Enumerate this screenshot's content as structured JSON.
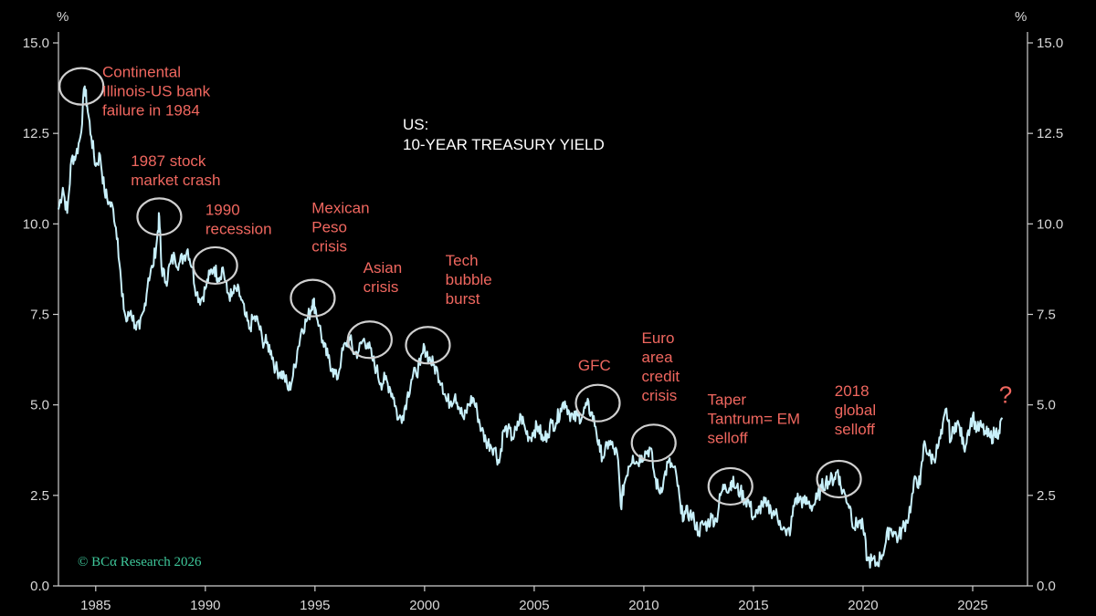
{
  "chart_data": {
    "type": "line",
    "title_lines": [
      "US:",
      "10-YEAR TREASURY YIELD"
    ],
    "unit_left": "%",
    "unit_right": "%",
    "credit": "© BCα Research 2026",
    "xlim": [
      1983.3,
      2027.5
    ],
    "ylim": [
      0,
      15.0
    ],
    "x_ticks": [
      1985,
      1990,
      1995,
      2000,
      2005,
      2010,
      2015,
      2020,
      2025
    ],
    "x_tick_labels": [
      "1985",
      "1990",
      "1995",
      "2000",
      "2005",
      "2010",
      "2015",
      "2020",
      "2025"
    ],
    "y_ticks": [
      0,
      2.5,
      5.0,
      7.5,
      10.0,
      12.5,
      15.0
    ],
    "y_tick_labels": [
      "0.0",
      "2.5",
      "5.0",
      "7.5",
      "10.0",
      "12.5",
      "15.0"
    ],
    "series": [
      {
        "color": "#c8f0fa",
        "points": [
          [
            1983.3,
            10.4
          ],
          [
            1983.5,
            11.0
          ],
          [
            1983.7,
            10.3
          ],
          [
            1983.9,
            11.8
          ],
          [
            1984.1,
            11.9
          ],
          [
            1984.3,
            12.4
          ],
          [
            1984.5,
            13.8
          ],
          [
            1984.6,
            13.3
          ],
          [
            1984.8,
            12.4
          ],
          [
            1985.0,
            11.6
          ],
          [
            1985.2,
            11.9
          ],
          [
            1985.4,
            10.9
          ],
          [
            1985.6,
            10.6
          ],
          [
            1985.8,
            10.4
          ],
          [
            1986.0,
            9.6
          ],
          [
            1986.2,
            8.0
          ],
          [
            1986.4,
            7.3
          ],
          [
            1986.6,
            7.6
          ],
          [
            1986.8,
            7.2
          ],
          [
            1987.0,
            7.1
          ],
          [
            1987.2,
            7.6
          ],
          [
            1987.4,
            8.5
          ],
          [
            1987.6,
            8.8
          ],
          [
            1987.8,
            9.6
          ],
          [
            1987.9,
            10.2
          ],
          [
            1988.0,
            8.8
          ],
          [
            1988.2,
            8.4
          ],
          [
            1988.4,
            8.9
          ],
          [
            1988.6,
            9.1
          ],
          [
            1988.8,
            8.9
          ],
          [
            1989.0,
            9.1
          ],
          [
            1989.2,
            9.3
          ],
          [
            1989.4,
            8.8
          ],
          [
            1989.6,
            8.1
          ],
          [
            1989.8,
            7.9
          ],
          [
            1990.0,
            8.2
          ],
          [
            1990.2,
            8.6
          ],
          [
            1990.4,
            8.8
          ],
          [
            1990.6,
            8.5
          ],
          [
            1990.8,
            8.8
          ],
          [
            1991.0,
            8.1
          ],
          [
            1991.2,
            8.0
          ],
          [
            1991.4,
            8.2
          ],
          [
            1991.6,
            8.0
          ],
          [
            1991.8,
            7.5
          ],
          [
            1992.0,
            7.1
          ],
          [
            1992.2,
            7.4
          ],
          [
            1992.4,
            7.3
          ],
          [
            1992.6,
            6.8
          ],
          [
            1992.8,
            6.7
          ],
          [
            1993.0,
            6.5
          ],
          [
            1993.2,
            6.0
          ],
          [
            1993.4,
            5.9
          ],
          [
            1993.6,
            5.8
          ],
          [
            1993.8,
            5.4
          ],
          [
            1994.0,
            5.8
          ],
          [
            1994.2,
            6.5
          ],
          [
            1994.4,
            7.1
          ],
          [
            1994.6,
            7.3
          ],
          [
            1994.8,
            7.6
          ],
          [
            1994.9,
            7.9
          ],
          [
            1995.0,
            7.7
          ],
          [
            1995.2,
            7.2
          ],
          [
            1995.4,
            6.6
          ],
          [
            1995.6,
            6.3
          ],
          [
            1995.8,
            6.0
          ],
          [
            1996.0,
            5.7
          ],
          [
            1996.2,
            6.3
          ],
          [
            1996.4,
            6.7
          ],
          [
            1996.6,
            6.8
          ],
          [
            1996.8,
            6.4
          ],
          [
            1997.0,
            6.5
          ],
          [
            1997.2,
            6.8
          ],
          [
            1997.4,
            6.7
          ],
          [
            1997.6,
            6.3
          ],
          [
            1997.8,
            6.0
          ],
          [
            1998.0,
            5.6
          ],
          [
            1998.2,
            5.7
          ],
          [
            1998.4,
            5.5
          ],
          [
            1998.6,
            5.2
          ],
          [
            1998.8,
            4.6
          ],
          [
            1999.0,
            4.7
          ],
          [
            1999.2,
            5.2
          ],
          [
            1999.4,
            5.7
          ],
          [
            1999.6,
            5.9
          ],
          [
            1999.8,
            6.1
          ],
          [
            2000.0,
            6.6
          ],
          [
            2000.2,
            6.3
          ],
          [
            2000.4,
            6.1
          ],
          [
            2000.6,
            5.9
          ],
          [
            2000.8,
            5.6
          ],
          [
            2001.0,
            5.1
          ],
          [
            2001.2,
            5.1
          ],
          [
            2001.4,
            5.3
          ],
          [
            2001.6,
            4.9
          ],
          [
            2001.8,
            4.6
          ],
          [
            2002.0,
            5.0
          ],
          [
            2002.2,
            5.2
          ],
          [
            2002.4,
            4.8
          ],
          [
            2002.6,
            4.3
          ],
          [
            2002.8,
            4.0
          ],
          [
            2003.0,
            3.9
          ],
          [
            2003.2,
            3.8
          ],
          [
            2003.4,
            3.4
          ],
          [
            2003.6,
            4.3
          ],
          [
            2003.8,
            4.3
          ],
          [
            2004.0,
            4.1
          ],
          [
            2004.2,
            4.3
          ],
          [
            2004.4,
            4.7
          ],
          [
            2004.6,
            4.3
          ],
          [
            2004.8,
            4.1
          ],
          [
            2005.0,
            4.3
          ],
          [
            2005.2,
            4.4
          ],
          [
            2005.4,
            4.0
          ],
          [
            2005.6,
            4.2
          ],
          [
            2005.8,
            4.5
          ],
          [
            2006.0,
            4.5
          ],
          [
            2006.2,
            4.9
          ],
          [
            2006.4,
            5.1
          ],
          [
            2006.6,
            4.8
          ],
          [
            2006.8,
            4.6
          ],
          [
            2007.0,
            4.7
          ],
          [
            2007.2,
            4.7
          ],
          [
            2007.4,
            5.0
          ],
          [
            2007.6,
            4.8
          ],
          [
            2007.8,
            4.4
          ],
          [
            2008.0,
            3.7
          ],
          [
            2008.2,
            3.6
          ],
          [
            2008.4,
            4.0
          ],
          [
            2008.6,
            3.8
          ],
          [
            2008.8,
            3.6
          ],
          [
            2008.95,
            2.2
          ],
          [
            2009.1,
            2.8
          ],
          [
            2009.3,
            3.3
          ],
          [
            2009.5,
            3.6
          ],
          [
            2009.7,
            3.4
          ],
          [
            2009.9,
            3.6
          ],
          [
            2010.1,
            3.7
          ],
          [
            2010.3,
            3.8
          ],
          [
            2010.5,
            3.0
          ],
          [
            2010.7,
            2.6
          ],
          [
            2010.9,
            2.9
          ],
          [
            2011.1,
            3.4
          ],
          [
            2011.3,
            3.3
          ],
          [
            2011.5,
            3.0
          ],
          [
            2011.7,
            2.0
          ],
          [
            2011.9,
            2.0
          ],
          [
            2012.1,
            2.0
          ],
          [
            2012.3,
            1.8
          ],
          [
            2012.5,
            1.5
          ],
          [
            2012.7,
            1.7
          ],
          [
            2012.9,
            1.7
          ],
          [
            2013.1,
            1.9
          ],
          [
            2013.3,
            1.8
          ],
          [
            2013.5,
            2.5
          ],
          [
            2013.7,
            2.8
          ],
          [
            2013.9,
            2.7
          ],
          [
            2014.0,
            2.9
          ],
          [
            2014.2,
            2.7
          ],
          [
            2014.4,
            2.6
          ],
          [
            2014.6,
            2.4
          ],
          [
            2014.8,
            2.3
          ],
          [
            2015.0,
            1.9
          ],
          [
            2015.2,
            2.0
          ],
          [
            2015.4,
            2.3
          ],
          [
            2015.6,
            2.2
          ],
          [
            2015.8,
            2.1
          ],
          [
            2016.0,
            2.0
          ],
          [
            2016.2,
            1.8
          ],
          [
            2016.5,
            1.4
          ],
          [
            2016.7,
            1.6
          ],
          [
            2016.9,
            2.4
          ],
          [
            2017.1,
            2.4
          ],
          [
            2017.3,
            2.3
          ],
          [
            2017.5,
            2.3
          ],
          [
            2017.7,
            2.2
          ],
          [
            2017.9,
            2.4
          ],
          [
            2018.1,
            2.7
          ],
          [
            2018.3,
            2.9
          ],
          [
            2018.5,
            2.9
          ],
          [
            2018.7,
            3.0
          ],
          [
            2018.85,
            3.2
          ],
          [
            2019.0,
            2.7
          ],
          [
            2019.2,
            2.5
          ],
          [
            2019.4,
            2.2
          ],
          [
            2019.6,
            1.6
          ],
          [
            2019.8,
            1.8
          ],
          [
            2020.0,
            1.6
          ],
          [
            2020.2,
            0.7
          ],
          [
            2020.4,
            0.7
          ],
          [
            2020.6,
            0.6
          ],
          [
            2020.8,
            0.8
          ],
          [
            2021.0,
            1.1
          ],
          [
            2021.2,
            1.6
          ],
          [
            2021.4,
            1.5
          ],
          [
            2021.6,
            1.3
          ],
          [
            2021.8,
            1.6
          ],
          [
            2022.0,
            1.8
          ],
          [
            2022.2,
            2.3
          ],
          [
            2022.4,
            3.0
          ],
          [
            2022.6,
            2.8
          ],
          [
            2022.8,
            4.0
          ],
          [
            2023.0,
            3.6
          ],
          [
            2023.2,
            3.5
          ],
          [
            2023.4,
            3.8
          ],
          [
            2023.6,
            4.2
          ],
          [
            2023.8,
            4.9
          ],
          [
            2024.0,
            4.0
          ],
          [
            2024.2,
            4.5
          ],
          [
            2024.4,
            4.4
          ],
          [
            2024.6,
            3.8
          ],
          [
            2024.8,
            4.3
          ],
          [
            2025.0,
            4.7
          ],
          [
            2025.2,
            4.3
          ],
          [
            2025.4,
            4.4
          ],
          [
            2025.6,
            4.2
          ],
          [
            2025.8,
            4.1
          ],
          [
            2026.0,
            4.2
          ],
          [
            2026.2,
            4.3
          ],
          [
            2026.35,
            4.6
          ]
        ]
      }
    ],
    "annotations": [
      {
        "lines": [
          "Continental",
          "Illinois-US bank",
          "failure in 1984"
        ],
        "circle_x": 1984.35,
        "circle_y": 13.8,
        "text_x": 1985.3,
        "text_y": 14.05
      },
      {
        "lines": [
          "1987 stock",
          "market crash"
        ],
        "circle_x": 1987.9,
        "circle_y": 10.2,
        "text_x": 1986.6,
        "text_y": 11.6
      },
      {
        "lines": [
          "1990",
          "recession"
        ],
        "circle_x": 1990.45,
        "circle_y": 8.85,
        "text_x": 1990.0,
        "text_y": 10.25
      },
      {
        "lines": [
          "Mexican",
          "Peso",
          "crisis"
        ],
        "circle_x": 1994.9,
        "circle_y": 7.95,
        "text_x": 1994.85,
        "text_y": 10.3
      },
      {
        "lines": [
          "Asian",
          "crisis"
        ],
        "circle_x": 1997.5,
        "circle_y": 6.8,
        "text_x": 1997.2,
        "text_y": 8.65
      },
      {
        "lines": [
          "Tech",
          "bubble",
          "burst"
        ],
        "circle_x": 2000.15,
        "circle_y": 6.65,
        "text_x": 2000.95,
        "text_y": 8.85
      },
      {
        "lines": [
          "GFC"
        ],
        "circle_x": 2007.9,
        "circle_y": 5.05,
        "text_x": 2007.0,
        "text_y": 5.95
      },
      {
        "lines": [
          "Euro",
          "area",
          "credit",
          "crisis"
        ],
        "circle_x": 2010.45,
        "circle_y": 3.95,
        "text_x": 2009.9,
        "text_y": 6.7
      },
      {
        "lines": [
          "Taper",
          "Tantrum= EM",
          "selloff"
        ],
        "circle_x": 2013.95,
        "circle_y": 2.75,
        "text_x": 2012.9,
        "text_y": 5.0
      },
      {
        "lines": [
          "2018",
          "global",
          "selloff"
        ],
        "circle_x": 2018.9,
        "circle_y": 2.95,
        "text_x": 2018.7,
        "text_y": 5.25
      }
    ],
    "latest_mark": {
      "label": "?",
      "x": 2026.2,
      "y": 5.05
    },
    "grid": false
  }
}
